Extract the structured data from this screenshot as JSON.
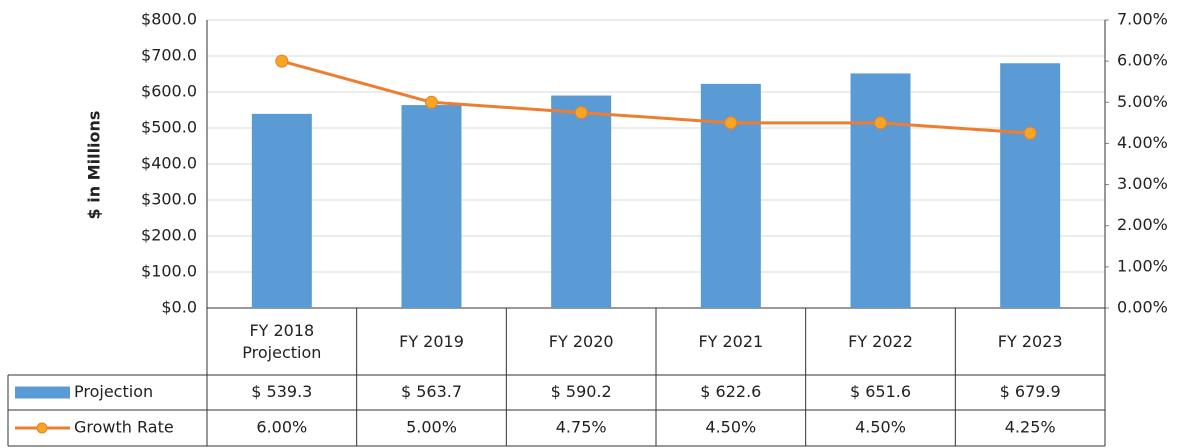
{
  "chart_data": {
    "type": "bar-line-table",
    "y_label": "$ in Millions",
    "categories": [
      "FY 2018 Projection",
      "FY 2019",
      "FY 2020",
      "FY 2021",
      "FY 2022",
      "FY 2023"
    ],
    "series": [
      {
        "name": "Projection",
        "type": "bar",
        "color": "#5b9bd5",
        "values": [
          539.3,
          563.7,
          590.2,
          622.6,
          651.6,
          679.9
        ],
        "value_labels": [
          "$ 539.3",
          "$ 563.7",
          "$ 590.2",
          "$ 622.6",
          "$ 651.6",
          "$ 679.9"
        ]
      },
      {
        "name": "Growth Rate",
        "type": "line",
        "axis": "y2",
        "color": "#ed7d31",
        "values": [
          6.0,
          5.0,
          4.75,
          4.5,
          4.5,
          4.25
        ],
        "value_labels": [
          "6.00%",
          "5.00%",
          "4.75%",
          "4.50%",
          "4.50%",
          "4.25%"
        ]
      }
    ],
    "ylim": [
      0,
      800
    ],
    "yticks": [
      {
        "value": 0,
        "label": "$0.0"
      },
      {
        "value": 100,
        "label": "$100.0"
      },
      {
        "value": 200,
        "label": "$200.0"
      },
      {
        "value": 300,
        "label": "$300.0"
      },
      {
        "value": 400,
        "label": "$400.0"
      },
      {
        "value": 500,
        "label": "$500.0"
      },
      {
        "value": 600,
        "label": "$600.0"
      },
      {
        "value": 700,
        "label": "$700.0"
      },
      {
        "value": 800,
        "label": "$800.0"
      }
    ],
    "y2lim": [
      0,
      7
    ],
    "y2ticks": [
      {
        "value": 0,
        "label": "0.00%"
      },
      {
        "value": 1,
        "label": "1.00%"
      },
      {
        "value": 2,
        "label": "2.00%"
      },
      {
        "value": 3,
        "label": "3.00%"
      },
      {
        "value": 4,
        "label": "4.00%"
      },
      {
        "value": 5,
        "label": "5.00%"
      },
      {
        "value": 6,
        "label": "6.00%"
      },
      {
        "value": 7,
        "label": "7.00%"
      }
    ],
    "grid": true
  }
}
